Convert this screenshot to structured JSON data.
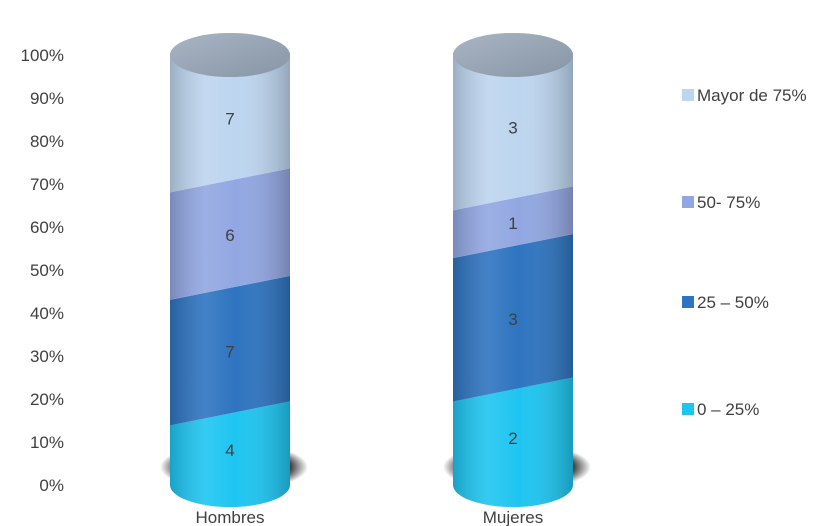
{
  "chart_data": {
    "type": "bar",
    "stacked": "percent",
    "shape": "cylinder",
    "categories": [
      "Hombres",
      "Mujeres"
    ],
    "series": [
      {
        "name": "0 – 25%",
        "values": [
          4,
          2
        ],
        "color": "#1ec5f1"
      },
      {
        "name": "25 – 50%",
        "values": [
          7,
          3
        ],
        "color": "#2e74c0"
      },
      {
        "name": "50- 75%",
        "values": [
          6,
          1
        ],
        "color": "#92a7e2"
      },
      {
        "name": "Mayor de 75%",
        "values": [
          7,
          3
        ],
        "color": "#bdd5ef"
      }
    ],
    "y_ticks": [
      "0%",
      "10%",
      "20%",
      "30%",
      "40%",
      "50%",
      "60%",
      "70%",
      "80%",
      "90%",
      "100%"
    ],
    "ylim": [
      0,
      100
    ],
    "legend_position": "right",
    "grid": false
  }
}
